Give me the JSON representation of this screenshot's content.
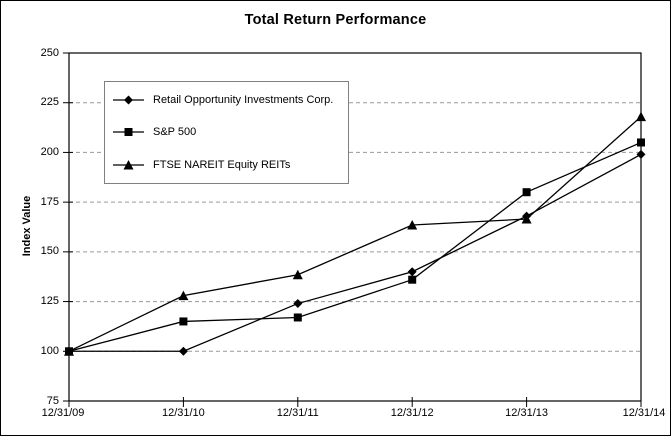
{
  "chart_data": {
    "type": "line",
    "title": "Total Return Performance",
    "xlabel": "",
    "ylabel": "Index Value",
    "ylim": [
      75,
      250
    ],
    "ytick_step": 25,
    "y_ticks": [
      250,
      225,
      200,
      175,
      150,
      125,
      100,
      75
    ],
    "grid": "horizontal dashed gridlines on; vertical off",
    "legend_position": "inside upper-left, boxed",
    "categories": [
      "12/31/09",
      "12/31/10",
      "12/31/11",
      "12/31/12",
      "12/31/13",
      "12/31/14"
    ],
    "series": [
      {
        "name": "Retail Opportunity Investments Corp.",
        "marker": "diamond",
        "values": [
          100,
          100,
          124,
          140,
          168,
          199
        ]
      },
      {
        "name": "S&P 500",
        "marker": "square",
        "values": [
          100,
          115,
          117,
          136,
          180,
          205
        ]
      },
      {
        "name": "FTSE NAREIT Equity REITs",
        "marker": "triangle",
        "values": [
          100,
          128,
          138.5,
          163.5,
          166.5,
          218
        ]
      }
    ],
    "colors": {
      "series_line": "#000000",
      "marker_fill": "#000000",
      "gridline": "#999999",
      "axis": "#000000",
      "legend_border": "#808080",
      "background": "#ffffff"
    }
  }
}
